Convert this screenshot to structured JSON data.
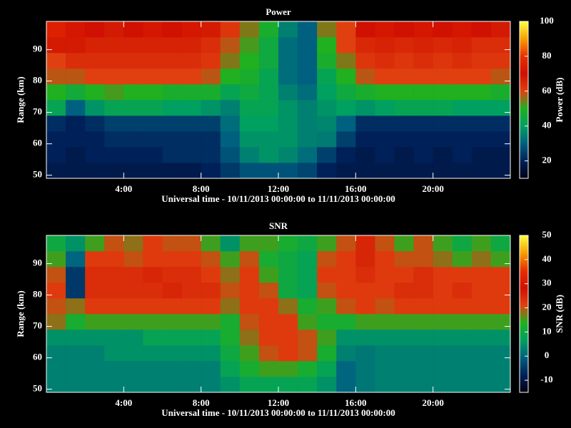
{
  "chart_data": [
    {
      "type": "heatmap",
      "title": "Power",
      "xlabel": "Universal time - 10/11/2013 00:00:00 to 11/11/2013 00:00:00",
      "ylabel": "Range (km)",
      "colorbar_label": "Power (dB)",
      "x": [
        0.5,
        1.5,
        2.5,
        3.5,
        4.5,
        5.5,
        6.5,
        7.5,
        8.5,
        9.5,
        10.5,
        11.5,
        12.5,
        13.5,
        14.5,
        15.5,
        16.5,
        17.5,
        18.5,
        19.5,
        20.5,
        21.5,
        22.5,
        23.5
      ],
      "y": [
        51.5,
        56.5,
        61.5,
        66.5,
        71.5,
        76.5,
        81.5,
        86.5,
        91.5,
        96.5
      ],
      "values": [
        [
          18,
          18,
          18,
          18,
          18,
          18,
          18,
          18,
          20,
          24,
          28,
          28,
          28,
          26,
          20,
          18,
          18,
          18,
          18,
          18,
          18,
          18,
          18,
          18
        ],
        [
          20,
          18,
          20,
          20,
          20,
          20,
          22,
          22,
          22,
          28,
          35,
          38,
          36,
          32,
          25,
          20,
          18,
          20,
          18,
          20,
          18,
          20,
          18,
          18
        ],
        [
          20,
          20,
          20,
          22,
          22,
          22,
          22,
          22,
          22,
          30,
          38,
          38,
          38,
          35,
          34,
          25,
          20,
          20,
          20,
          20,
          20,
          20,
          20,
          20
        ],
        [
          22,
          20,
          22,
          25,
          25,
          25,
          25,
          25,
          25,
          32,
          40,
          40,
          38,
          35,
          36,
          30,
          22,
          22,
          22,
          22,
          22,
          22,
          22,
          22
        ],
        [
          42,
          30,
          38,
          42,
          42,
          42,
          40,
          40,
          38,
          35,
          42,
          42,
          38,
          35,
          38,
          40,
          38,
          40,
          42,
          42,
          42,
          40,
          40,
          40
        ],
        [
          50,
          46,
          50,
          52,
          50,
          50,
          48,
          48,
          48,
          42,
          45,
          42,
          35,
          32,
          40,
          45,
          48,
          50,
          50,
          50,
          50,
          50,
          50,
          48
        ],
        [
          58,
          58,
          60,
          60,
          60,
          60,
          60,
          60,
          58,
          50,
          48,
          42,
          32,
          30,
          42,
          50,
          58,
          60,
          60,
          60,
          60,
          60,
          60,
          58
        ],
        [
          60,
          64,
          64,
          64,
          64,
          64,
          64,
          64,
          62,
          55,
          50,
          45,
          32,
          30,
          48,
          55,
          62,
          64,
          62,
          64,
          62,
          64,
          62,
          62
        ],
        [
          68,
          68,
          66,
          66,
          66,
          66,
          66,
          66,
          64,
          58,
          52,
          45,
          32,
          30,
          50,
          60,
          65,
          66,
          65,
          66,
          65,
          66,
          64,
          64
        ],
        [
          75,
          72,
          70,
          68,
          70,
          72,
          70,
          72,
          68,
          62,
          55,
          48,
          35,
          30,
          55,
          60,
          70,
          72,
          70,
          72,
          70,
          72,
          70,
          68
        ]
      ],
      "xlim": [
        0,
        24
      ],
      "xticks": [
        {
          "value": 4,
          "label": "4:00"
        },
        {
          "value": 8,
          "label": "8:00"
        },
        {
          "value": 12,
          "label": "12:00"
        },
        {
          "value": 16,
          "label": "16:00"
        },
        {
          "value": 20,
          "label": "20:00"
        }
      ],
      "ylim": [
        49,
        99
      ],
      "yticks": [
        50,
        60,
        70,
        80,
        90
      ],
      "zlim": [
        10,
        100
      ],
      "zticks": [
        20,
        40,
        60,
        80,
        100
      ],
      "colormap": [
        "#000010",
        "#00205a",
        "#006080",
        "#00a060",
        "#20b020",
        "#e04010",
        "#d01000",
        "#e83000",
        "#f8a000",
        "#ffff40"
      ]
    },
    {
      "type": "heatmap",
      "title": "SNR",
      "xlabel": "Universal time - 10/11/2013 00:00:00 to 11/11/2013 00:00:00",
      "ylabel": "Range (km)",
      "colorbar_label": "SNR (dB)",
      "x": [
        0.5,
        1.5,
        2.5,
        3.5,
        4.5,
        5.5,
        6.5,
        7.5,
        8.5,
        9.5,
        10.5,
        11.5,
        12.5,
        13.5,
        14.5,
        15.5,
        16.5,
        17.5,
        18.5,
        19.5,
        20.5,
        21.5,
        22.5,
        23.5
      ],
      "y": [
        51.5,
        56.5,
        61.5,
        66.5,
        71.5,
        76.5,
        81.5,
        86.5,
        91.5,
        96.5
      ],
      "values": [
        [
          3,
          3,
          3,
          3,
          3,
          3,
          3,
          3,
          3,
          5,
          8,
          8,
          8,
          8,
          5,
          0,
          2,
          3,
          3,
          3,
          3,
          3,
          3,
          3
        ],
        [
          3,
          3,
          3,
          3,
          3,
          3,
          3,
          3,
          3,
          8,
          12,
          15,
          15,
          12,
          8,
          0,
          2,
          3,
          3,
          3,
          3,
          3,
          3,
          3
        ],
        [
          3,
          3,
          3,
          5,
          5,
          5,
          5,
          5,
          5,
          10,
          15,
          20,
          22,
          20,
          12,
          3,
          2,
          3,
          3,
          3,
          3,
          3,
          3,
          3
        ],
        [
          5,
          5,
          5,
          5,
          5,
          8,
          8,
          8,
          8,
          12,
          18,
          22,
          22,
          20,
          15,
          5,
          5,
          5,
          5,
          5,
          5,
          5,
          5,
          5
        ],
        [
          18,
          12,
          15,
          15,
          15,
          15,
          15,
          15,
          15,
          12,
          20,
          22,
          22,
          15,
          12,
          12,
          15,
          15,
          15,
          15,
          15,
          15,
          15,
          15
        ],
        [
          20,
          18,
          22,
          22,
          22,
          22,
          22,
          22,
          22,
          18,
          22,
          22,
          18,
          12,
          15,
          20,
          22,
          20,
          22,
          22,
          22,
          22,
          22,
          22
        ],
        [
          22,
          -5,
          24,
          24,
          24,
          24,
          25,
          24,
          24,
          20,
          22,
          20,
          10,
          8,
          20,
          22,
          22,
          22,
          24,
          24,
          22,
          24,
          22,
          22
        ],
        [
          20,
          -5,
          24,
          24,
          24,
          25,
          24,
          24,
          22,
          18,
          22,
          15,
          10,
          8,
          22,
          22,
          24,
          22,
          22,
          24,
          22,
          22,
          22,
          22
        ],
        [
          15,
          0,
          22,
          22,
          20,
          22,
          22,
          22,
          20,
          15,
          20,
          12,
          10,
          8,
          20,
          22,
          25,
          22,
          20,
          20,
          18,
          15,
          18,
          15
        ],
        [
          10,
          5,
          15,
          20,
          18,
          22,
          20,
          20,
          15,
          5,
          15,
          15,
          12,
          10,
          15,
          20,
          25,
          20,
          15,
          20,
          15,
          10,
          15,
          10
        ]
      ],
      "xlim": [
        0,
        24
      ],
      "xticks": [
        {
          "value": 4,
          "label": "4:00"
        },
        {
          "value": 8,
          "label": "8:00"
        },
        {
          "value": 12,
          "label": "12:00"
        },
        {
          "value": 16,
          "label": "16:00"
        },
        {
          "value": 20,
          "label": "20:00"
        }
      ],
      "ylim": [
        49,
        99
      ],
      "yticks": [
        50,
        60,
        70,
        80,
        90
      ],
      "zlim": [
        -15,
        50
      ],
      "zticks": [
        -10,
        0,
        10,
        20,
        30,
        40,
        50
      ],
      "colormap": [
        "#000010",
        "#00205a",
        "#006080",
        "#00a060",
        "#20b020",
        "#e04010",
        "#d01000",
        "#e83000",
        "#f8a000",
        "#ffff40"
      ]
    }
  ]
}
